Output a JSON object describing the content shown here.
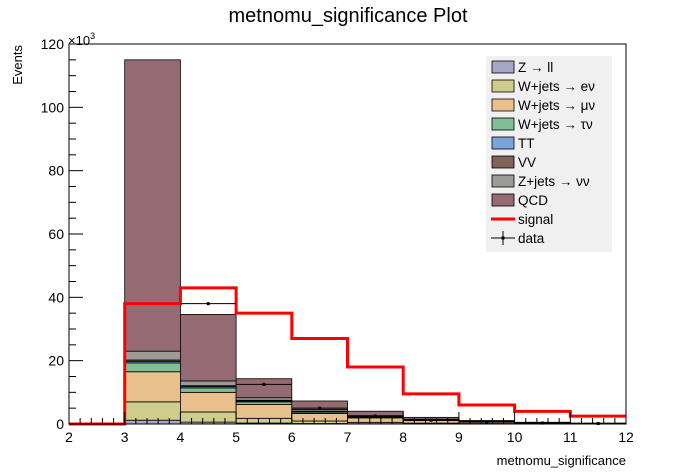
{
  "chart_data": {
    "type": "bar",
    "title": "metnomu_significance Plot",
    "xlabel": "metnomu_significance",
    "ylabel": "Events",
    "y_multiplier": "×10",
    "y_multiplier_exp": "3",
    "xlim": [
      2,
      12
    ],
    "ylim": [
      0,
      120
    ],
    "x_ticks": [
      "2",
      "3",
      "4",
      "5",
      "6",
      "7",
      "8",
      "9",
      "10",
      "11",
      "12"
    ],
    "y_ticks": [
      "0",
      "20",
      "40",
      "60",
      "80",
      "100",
      "120"
    ],
    "bin_edges": [
      2,
      3,
      4,
      5,
      6,
      7,
      8,
      9,
      10,
      11,
      12
    ],
    "stack_order_bottom_to_top": [
      "Z → ll",
      "W+jets → eν",
      "W+jets → μν",
      "W+jets → τν",
      "TT",
      "VV",
      "Z+jets → νν",
      "QCD"
    ],
    "series": [
      {
        "name": "Z → ll",
        "color": "#a6a6c8",
        "values": [
          0,
          1.2,
          0.6,
          0.3,
          0.15,
          0.08,
          0.04,
          0.02,
          0.01,
          0.005
        ]
      },
      {
        "name": "W+jets → eν",
        "color": "#cfcd8c",
        "values": [
          0,
          5.8,
          3.2,
          1.5,
          0.8,
          0.45,
          0.25,
          0.12,
          0.06,
          0.03
        ]
      },
      {
        "name": "W+jets → μν",
        "color": "#e8c08c",
        "values": [
          0,
          9.5,
          6.2,
          4.4,
          2.4,
          1.4,
          0.8,
          0.45,
          0.22,
          0.12
        ]
      },
      {
        "name": "W+jets → τν",
        "color": "#7fbf96",
        "values": [
          0,
          2.8,
          1.4,
          0.8,
          0.4,
          0.22,
          0.12,
          0.06,
          0.03,
          0.015
        ]
      },
      {
        "name": "TT",
        "color": "#7ba3dc",
        "values": [
          0,
          0.5,
          0.4,
          0.3,
          0.2,
          0.12,
          0.07,
          0.04,
          0.02,
          0.01
        ]
      },
      {
        "name": "VV",
        "color": "#80625a",
        "values": [
          0,
          0.4,
          0.3,
          0.2,
          0.12,
          0.07,
          0.04,
          0.02,
          0.01,
          0.005
        ]
      },
      {
        "name": "Z+jets → νν",
        "color": "#9b9b97",
        "values": [
          0,
          2.8,
          1.5,
          0.8,
          0.5,
          0.3,
          0.18,
          0.1,
          0.05,
          0.03
        ]
      },
      {
        "name": "QCD",
        "color": "#966a72",
        "values": [
          0,
          92,
          21,
          6,
          2.7,
          1.4,
          0.6,
          0.3,
          0.15,
          0.08
        ]
      }
    ],
    "signal": {
      "name": "signal",
      "color": "#ff0000",
      "values": [
        0,
        38,
        43,
        35,
        27,
        18,
        9.5,
        6,
        4,
        2.5
      ]
    },
    "data": {
      "name": "data",
      "values": [
        0,
        0,
        38,
        12.5,
        5,
        2.5,
        1.2,
        0.6,
        0.3,
        0.15
      ]
    },
    "legend": {
      "placement": "top-right"
    }
  }
}
